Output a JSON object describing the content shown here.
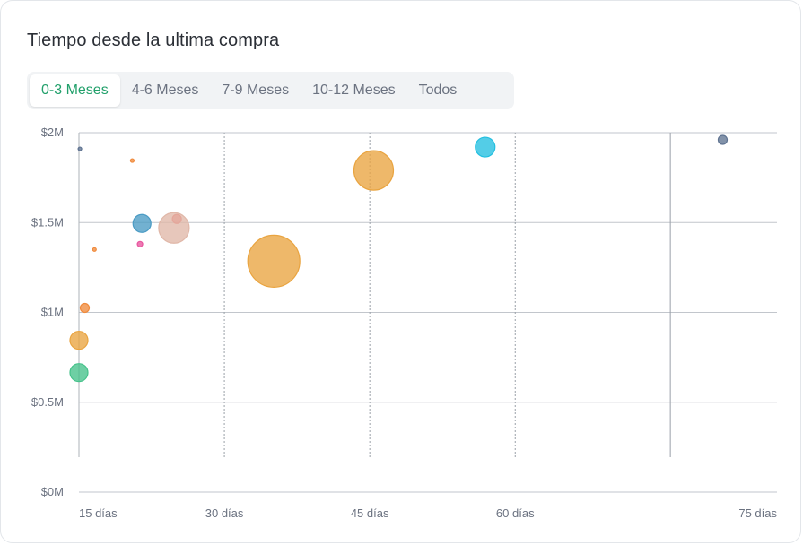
{
  "title": "Tiempo desde la ultima compra",
  "tabs": [
    {
      "label": "0-3 Meses",
      "active": true
    },
    {
      "label": "4-6 Meses",
      "active": false
    },
    {
      "label": "7-9 Meses",
      "active": false
    },
    {
      "label": "10-12 Meses",
      "active": false
    },
    {
      "label": "Todos",
      "active": false
    }
  ],
  "chart_data": {
    "type": "scatter",
    "title": "",
    "xlabel": "",
    "ylabel": "",
    "xlim": [
      15,
      87
    ],
    "ylim": [
      0,
      2000000
    ],
    "x_tick_labels": [
      {
        "value": 15,
        "label": "15 días"
      },
      {
        "value": 30,
        "label": "30 días"
      },
      {
        "value": 45,
        "label": "45 días"
      },
      {
        "value": 60,
        "label": "60 días"
      },
      {
        "value": 75,
        "label": "75 días"
      }
    ],
    "y_tick_labels": [
      {
        "value": 0,
        "label": "$0M"
      },
      {
        "value": 500000,
        "label": "$0.5M"
      },
      {
        "value": 1000000,
        "label": "$1M"
      },
      {
        "value": 1500000,
        "label": "$1.5M"
      },
      {
        "value": 2000000,
        "label": "$2M"
      }
    ],
    "vertical_gridlines": [
      {
        "x": 30,
        "style": "dashed"
      },
      {
        "x": 45,
        "style": "dashed"
      },
      {
        "x": 60,
        "style": "dashed"
      },
      {
        "x": 76,
        "style": "solid"
      }
    ],
    "grid": true,
    "points": [
      {
        "x": 15.1,
        "y": 1910000,
        "size": 2,
        "color": "#5f7391"
      },
      {
        "x": 20.5,
        "y": 1845000,
        "size": 2,
        "color": "#f08a3c"
      },
      {
        "x": 16.6,
        "y": 1350000,
        "size": 2,
        "color": "#f08a3c"
      },
      {
        "x": 21.3,
        "y": 1380000,
        "size": 3,
        "color": "#e8559e"
      },
      {
        "x": 25.1,
        "y": 1520000,
        "size": 5,
        "color": "#f26b6b"
      },
      {
        "x": 21.5,
        "y": 1495000,
        "size": 10,
        "color": "#4a9bc4"
      },
      {
        "x": 24.8,
        "y": 1470000,
        "size": 17,
        "color": "#e0b7a8"
      },
      {
        "x": 15.6,
        "y": 1025000,
        "size": 5,
        "color": "#f08a3c"
      },
      {
        "x": 15.0,
        "y": 845000,
        "size": 10,
        "color": "#e9a440"
      },
      {
        "x": 15.0,
        "y": 665000,
        "size": 10,
        "color": "#45c28a"
      },
      {
        "x": 35.1,
        "y": 1285000,
        "size": 29,
        "color": "#e9a440"
      },
      {
        "x": 45.4,
        "y": 1790000,
        "size": 22,
        "color": "#e9a440"
      },
      {
        "x": 56.9,
        "y": 1920000,
        "size": 11,
        "color": "#22bfe0"
      },
      {
        "x": 81.4,
        "y": 1960000,
        "size": 5,
        "color": "#5f7391"
      }
    ]
  }
}
